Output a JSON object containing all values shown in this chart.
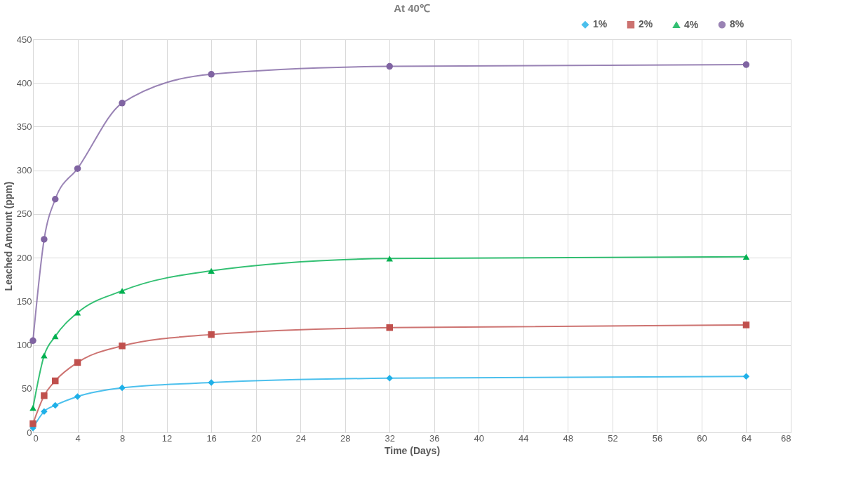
{
  "chart_data": {
    "type": "line",
    "title": "At 40℃",
    "xlabel": "Time (Days)",
    "ylabel": "Leached Amount (ppm)",
    "x": [
      0,
      1,
      2,
      4,
      8,
      16,
      32,
      64
    ],
    "series": [
      {
        "name": "1%",
        "color": "#1fb0e8",
        "marker": "diamond",
        "values": [
          5,
          24,
          31,
          41,
          51,
          57,
          62,
          64
        ]
      },
      {
        "name": "2%",
        "color": "#c0504d",
        "marker": "square",
        "values": [
          10,
          42,
          59,
          80,
          99,
          112,
          120,
          123
        ]
      },
      {
        "name": "4%",
        "color": "#00b050",
        "marker": "triangle",
        "values": [
          28,
          88,
          110,
          137,
          162,
          185,
          199,
          201
        ]
      },
      {
        "name": "8%",
        "color": "#8064a2",
        "marker": "circle",
        "values": [
          105,
          221,
          267,
          302,
          377,
          410,
          419,
          421
        ]
      }
    ],
    "xlim": [
      0,
      68
    ],
    "xticks": [
      0,
      4,
      8,
      12,
      16,
      20,
      24,
      28,
      32,
      36,
      40,
      44,
      48,
      52,
      56,
      60,
      64,
      68
    ],
    "ylim": [
      0,
      450
    ],
    "yticks": [
      0,
      50,
      100,
      150,
      200,
      250,
      300,
      350,
      400,
      450
    ],
    "grid": true,
    "legend": "top right",
    "line_style": "solid"
  }
}
